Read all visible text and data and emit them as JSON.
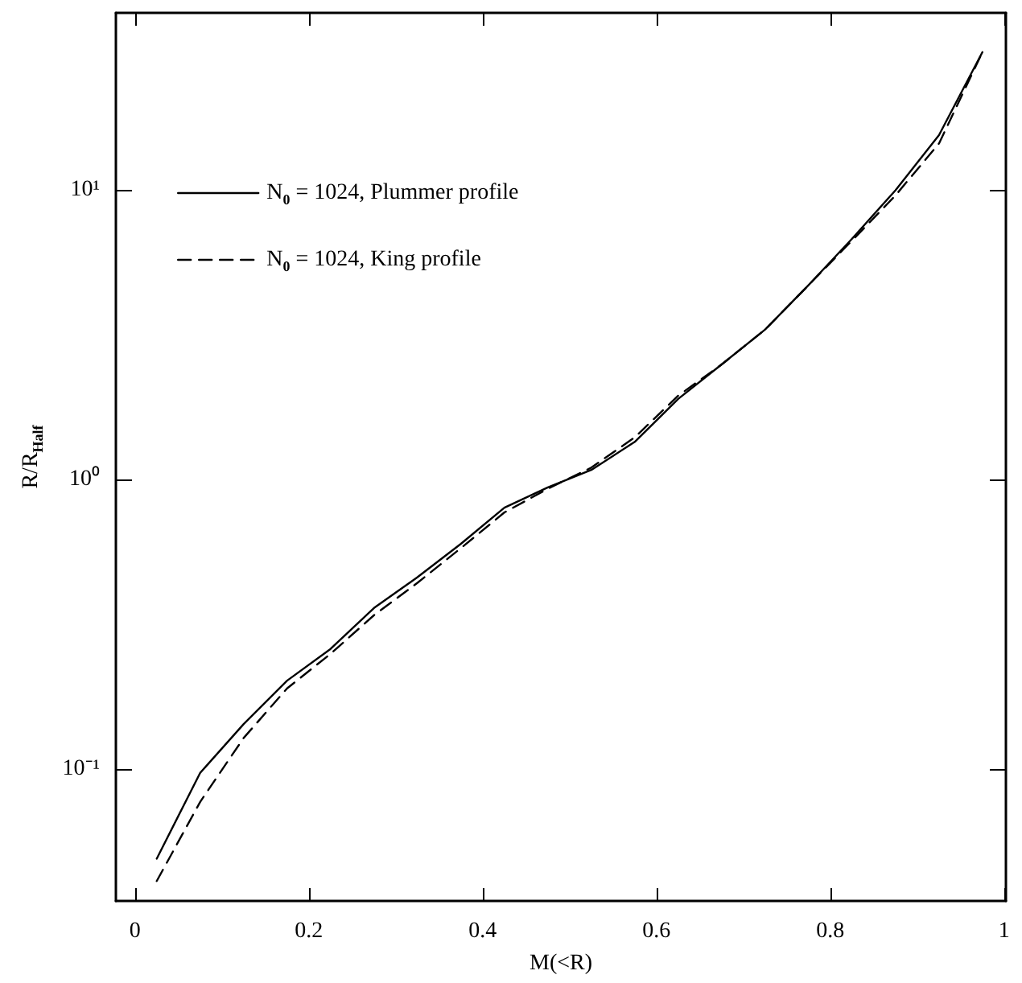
{
  "chart_data": {
    "type": "line",
    "xlabel": "M(<R)",
    "ylabel": "R/R$_{Half}$",
    "x": [
      0.025,
      0.075,
      0.125,
      0.175,
      0.225,
      0.275,
      0.325,
      0.375,
      0.425,
      0.475,
      0.525,
      0.575,
      0.625,
      0.675,
      0.725,
      0.775,
      0.825,
      0.875,
      0.925,
      0.975
    ],
    "series": [
      {
        "name": "N$_{0}$ = 1024, Plummer profile",
        "color": "#000000",
        "line_style": "solid",
        "values": [
          0.049,
          0.097,
          0.143,
          0.202,
          0.26,
          0.36,
          0.46,
          0.6,
          0.8,
          0.94,
          1.08,
          1.35,
          1.9,
          2.5,
          3.3,
          4.7,
          6.8,
          10,
          15.5,
          30
        ]
      },
      {
        "name": "N$_{0}$ = 1024, King profile",
        "color": "#000000",
        "line_style": "dashed",
        "values": [
          0.041,
          0.077,
          0.128,
          0.19,
          0.25,
          0.34,
          0.44,
          0.58,
          0.77,
          0.93,
          1.1,
          1.4,
          1.95,
          2.5,
          3.3,
          4.7,
          6.7,
          9.6,
          14.5,
          30
        ]
      }
    ],
    "xlim": [
      -0.022,
      1.002
    ],
    "xticks": [
      0,
      0.2,
      0.4,
      0.6,
      0.8,
      1
    ],
    "ylim": [
      0.035,
      41
    ],
    "yticks": [
      {
        "value": 0.1,
        "label": "10⁻¹"
      },
      {
        "value": 1,
        "label": "10⁰"
      },
      {
        "value": 10,
        "label": "10¹"
      }
    ],
    "log": "y",
    "grid": false,
    "legend": "top left",
    "marker": "none"
  }
}
